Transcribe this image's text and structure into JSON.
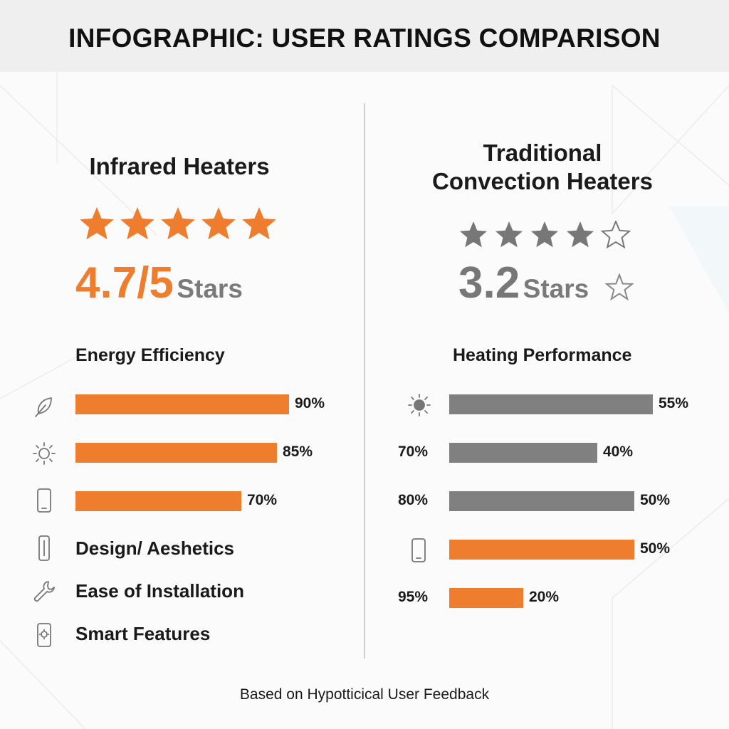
{
  "title": "INFOGRAPHIC: USER RATINGS COMPARISON",
  "footer": "Based on Hypotticical User Feedback",
  "colors": {
    "orange": "#ee7d2e",
    "gray": "#808080",
    "text": "#1a1a1a"
  },
  "left": {
    "title": "Infrared Heaters",
    "rating_value": "4.7/5",
    "rating_suffix": "Stars",
    "stars_filled": 5,
    "section_label": "Energy Efficiency",
    "feature_labels": [
      "Design/ Aeshetics",
      "Ease of Installation",
      "Smart Features"
    ]
  },
  "right": {
    "title_line1": "Traditional",
    "title_line2": "Convection Heaters",
    "rating_value": "3.2",
    "rating_suffix": "Stars",
    "stars_filled": 4,
    "stars_total": 5,
    "section_label": "Heating Performance"
  },
  "chart_data": [
    {
      "type": "bar",
      "orientation": "horizontal",
      "title": "Energy Efficiency",
      "series": [
        {
          "values": [
            90,
            85,
            70
          ],
          "labels": [
            "90%",
            "85%",
            "70%"
          ],
          "color": "#ee7d2e",
          "icons": [
            "leaf-icon",
            "sun-icon",
            "phone-icon"
          ]
        }
      ],
      "xlim": [
        0,
        100
      ]
    },
    {
      "type": "bar",
      "orientation": "horizontal",
      "title": "Heating Performance",
      "series": [
        {
          "values": [
            55,
            40,
            50,
            50,
            20
          ],
          "labels": [
            "55%",
            "40%",
            "50%",
            "50%",
            "20%"
          ],
          "side_labels": [
            "",
            "70%",
            "80%",
            "",
            "95%"
          ],
          "colors": [
            "#808080",
            "#808080",
            "#808080",
            "#ee7d2e",
            "#ee7d2e"
          ],
          "icons": [
            "sun-filled-icon",
            "",
            "",
            "phone-icon",
            ""
          ]
        }
      ]
    }
  ]
}
